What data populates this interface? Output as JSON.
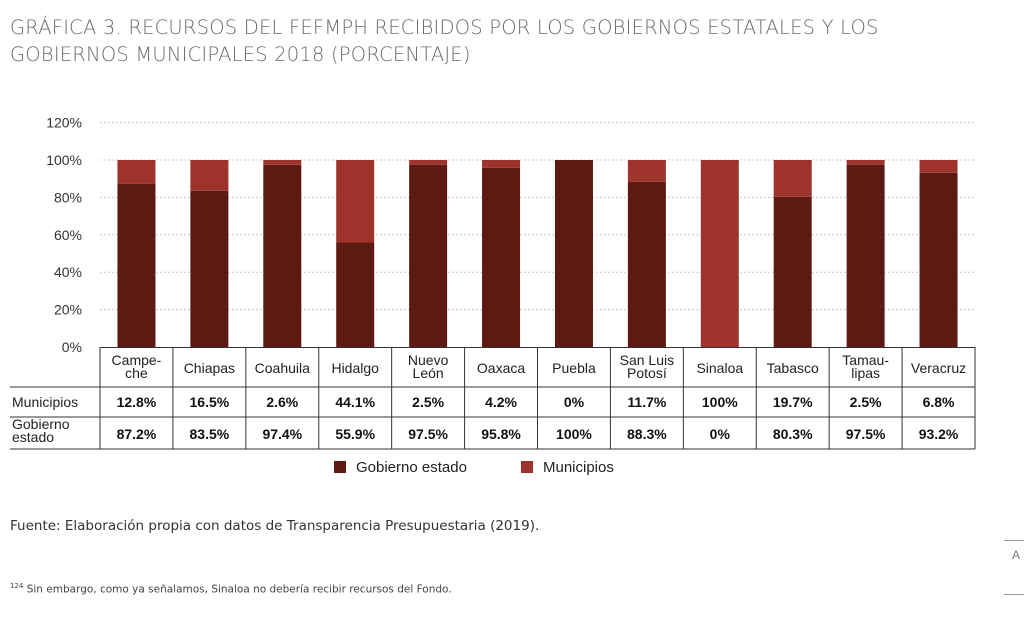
{
  "title": "GRÁFICA 3. RECURSOS DEL FEFMPH RECIBIDOS POR LOS GOBIERNOS ESTATALES Y LOS GOBIERNOS MUNICIPALES 2018 (PORCENTAJE)",
  "source": "Fuente: Elaboración propia con datos de Transparencia Presupuestaria (2019).",
  "footnote": {
    "marker": "124",
    "text": "Sin embargo, como ya señalamos, Sinaloa no debería recibir recursos del Fondo."
  },
  "edge_text": "A",
  "colors": {
    "gobierno": "#5c1a12",
    "municipios": "#9e332c",
    "grid": "#c8c8c8",
    "axis": "#333333"
  },
  "chart_data": {
    "type": "bar",
    "stacked": true,
    "ylim": [
      0,
      120
    ],
    "yticks": [
      "0%",
      "20%",
      "40%",
      "60%",
      "80%",
      "100%",
      "120%"
    ],
    "grid": true,
    "legend_position": "bottom",
    "categories": [
      [
        "Campe-",
        "che"
      ],
      [
        "Chiapas"
      ],
      [
        "Coahuila"
      ],
      [
        "Hidalgo"
      ],
      [
        "Nuevo",
        "León"
      ],
      [
        "Oaxaca"
      ],
      [
        "Puebla"
      ],
      [
        "San Luis",
        "Potosí"
      ],
      [
        "Sinaloa"
      ],
      [
        "Tabasco"
      ],
      [
        "Tamau-",
        "lipas"
      ],
      [
        "Veracruz"
      ]
    ],
    "series": [
      {
        "name": "Gobierno estado",
        "row_label": [
          "Gobierno",
          "estado"
        ],
        "color": "#5c1a12",
        "values": [
          87.2,
          83.5,
          97.4,
          55.9,
          97.5,
          95.8,
          100,
          88.3,
          0,
          80.3,
          97.5,
          93.2
        ],
        "labels": [
          "87.2%",
          "83.5%",
          "97.4%",
          "55.9%",
          "97.5%",
          "95.8%",
          "100%",
          "88.3%",
          "0%",
          "80.3%",
          "97.5%",
          "93.2%"
        ]
      },
      {
        "name": "Municipios",
        "row_label": [
          "Municipios"
        ],
        "color": "#9e332c",
        "values": [
          12.8,
          16.5,
          2.6,
          44.1,
          2.5,
          4.2,
          0,
          11.7,
          100,
          19.7,
          2.5,
          6.8
        ],
        "labels": [
          "12.8%",
          "16.5%",
          "2.6%",
          "44.1%",
          "2.5%",
          "4.2%",
          "0%",
          "11.7%",
          "100%",
          "19.7%",
          "2.5%",
          "6.8%"
        ]
      }
    ]
  }
}
